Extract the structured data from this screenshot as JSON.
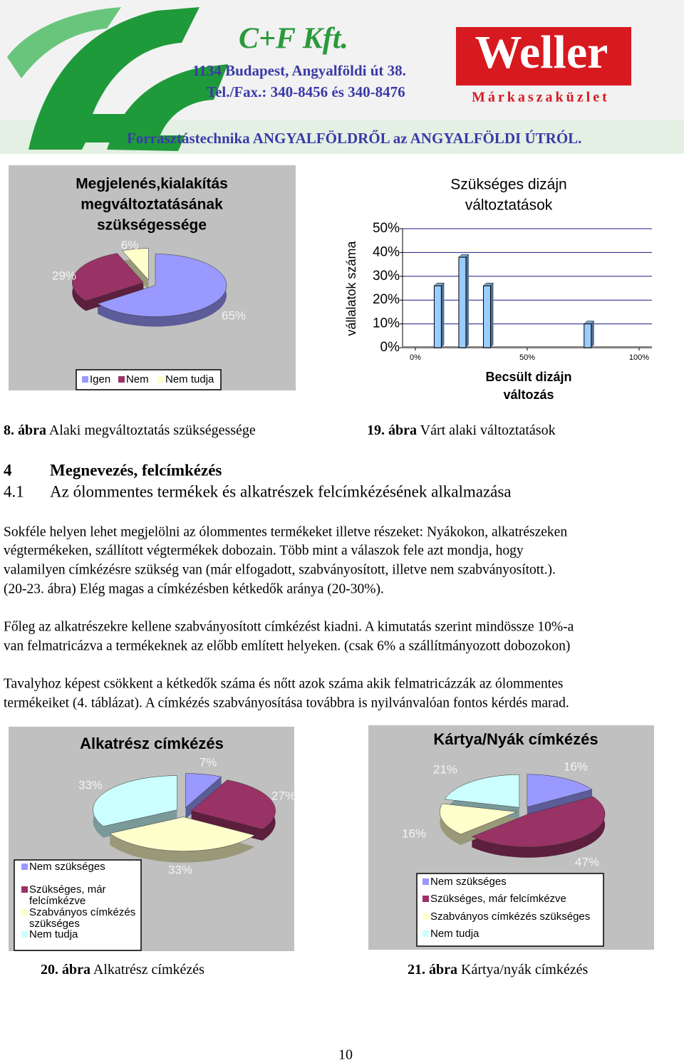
{
  "header": {
    "company": "C+F  Kft.",
    "address": "1134 Budapest,  Angyalföldi út 38.",
    "phone": "Tel./Fax.: 340-8456  és  340-8476",
    "brand": "Weller",
    "shop": "Márkaszaküzlet",
    "slogan": "Forrasztástechnika ANGYALFÖLDRŐL az ANGYALFÖLDI ÚTRÓL."
  },
  "chart_data": [
    {
      "type": "pie",
      "title": [
        "Megjelenés,kialakítás",
        "megváltoztatásának",
        "szükségessége"
      ],
      "categories": [
        "Igen",
        "Nem",
        "Nem tudja"
      ],
      "values": [
        65,
        29,
        6
      ],
      "value_labels": [
        "65%",
        "29%",
        "6%"
      ],
      "colors": [
        "#9999ff",
        "#993366",
        "#ffffcc"
      ],
      "legend": "bottom"
    },
    {
      "type": "bar",
      "title": [
        "Szükséges dizájn",
        "változtatások"
      ],
      "x": [
        10,
        21,
        32,
        77
      ],
      "values": [
        26,
        38,
        26,
        10
      ],
      "color": "#99ccff",
      "xlabel": [
        "Becsült dizájn",
        "változás"
      ],
      "ylabel": "vállalatok száma",
      "xlim": [
        0,
        100
      ],
      "xticks": [
        {
          "value": 0,
          "label": "0%"
        },
        {
          "value": 50,
          "label": "50%"
        },
        {
          "value": 100,
          "label": "100%"
        }
      ],
      "ylim": [
        0,
        50
      ],
      "yticks": [
        {
          "value": 0,
          "label": "0%"
        },
        {
          "value": 10,
          "label": "10%"
        },
        {
          "value": 20,
          "label": "20%"
        },
        {
          "value": 30,
          "label": "30%"
        },
        {
          "value": 40,
          "label": "40%"
        },
        {
          "value": 50,
          "label": "50%"
        }
      ],
      "grid": true
    },
    {
      "type": "pie",
      "title": "Alkatrész címkézés",
      "categories": [
        "Nem szükséges",
        "Szükséges, már felcímkézve",
        "Szabványos címkézés szükséges",
        "Nem tudja"
      ],
      "values": [
        7,
        27,
        33,
        33
      ],
      "value_labels": [
        "7%",
        "27%",
        "33%",
        "33%"
      ],
      "colors": [
        "#9999ff",
        "#993366",
        "#ffffcc",
        "#ccffff"
      ],
      "legend": "bottom-left"
    },
    {
      "type": "pie",
      "title": "Kártya/Nyák címkézés",
      "categories": [
        "Nem szükséges",
        "Szükséges, már felcímkézve",
        "Szabványos címkézés szükséges",
        "Nem tudja"
      ],
      "values": [
        16,
        47,
        16,
        21
      ],
      "value_labels": [
        "16%",
        "47%",
        "16%",
        "21%"
      ],
      "colors": [
        "#9999ff",
        "#993366",
        "#ffffcc",
        "#ccffff"
      ],
      "legend": "bottom-right"
    }
  ],
  "captions": [
    {
      "label": "8. ábra",
      "text": "Alaki megváltoztatás szükségessége"
    },
    {
      "label": "19. ábra",
      "text": "Várt alaki változtatások"
    },
    {
      "label": "20. ábra",
      "text": "Alkatrész címkézés"
    },
    {
      "label": "21. ábra",
      "text": "Kártya/nyák címkézés"
    }
  ],
  "headings": [
    {
      "number": "4",
      "text": "Megnevezés, felcímkézés"
    },
    {
      "number": "4.1",
      "text": "Az ólommentes termékek és alkatrészek felcímkézésének alkalmazása"
    }
  ],
  "paragraphs": [
    [
      "Sokféle helyen lehet megjelölni az ólommentes termékeket illetve részeket: Nyákokon, alkatrészeken",
      "végtermékeken, szállított végtermékek dobozain. Több mint a válaszok fele azt mondja, hogy",
      "valamilyen címkézésre szükség van (már elfogadott, szabványosított, illetve nem szabványosított.).",
      "(20-23. ábra) Elég magas a címkézésben kétkedők aránya (20-30%)."
    ],
    [
      "Főleg az alkatrészekre kellene szabványosított címkézést kiadni. A kimutatás szerint mindössze 10%-a",
      "van felmatricázva a termékeknek az előbb említett helyeken. (csak 6% a szállítmányozott dobozokon)"
    ],
    [
      "Tavalyhoz képest csökkent a kétkedők száma és nőtt azok száma akik felmatricázzák az ólommentes",
      "termékeiket (4. táblázat). A címkézés szabványosítása továbbra is nyilvánvalóan fontos kérdés marad."
    ]
  ],
  "page_number": "10"
}
